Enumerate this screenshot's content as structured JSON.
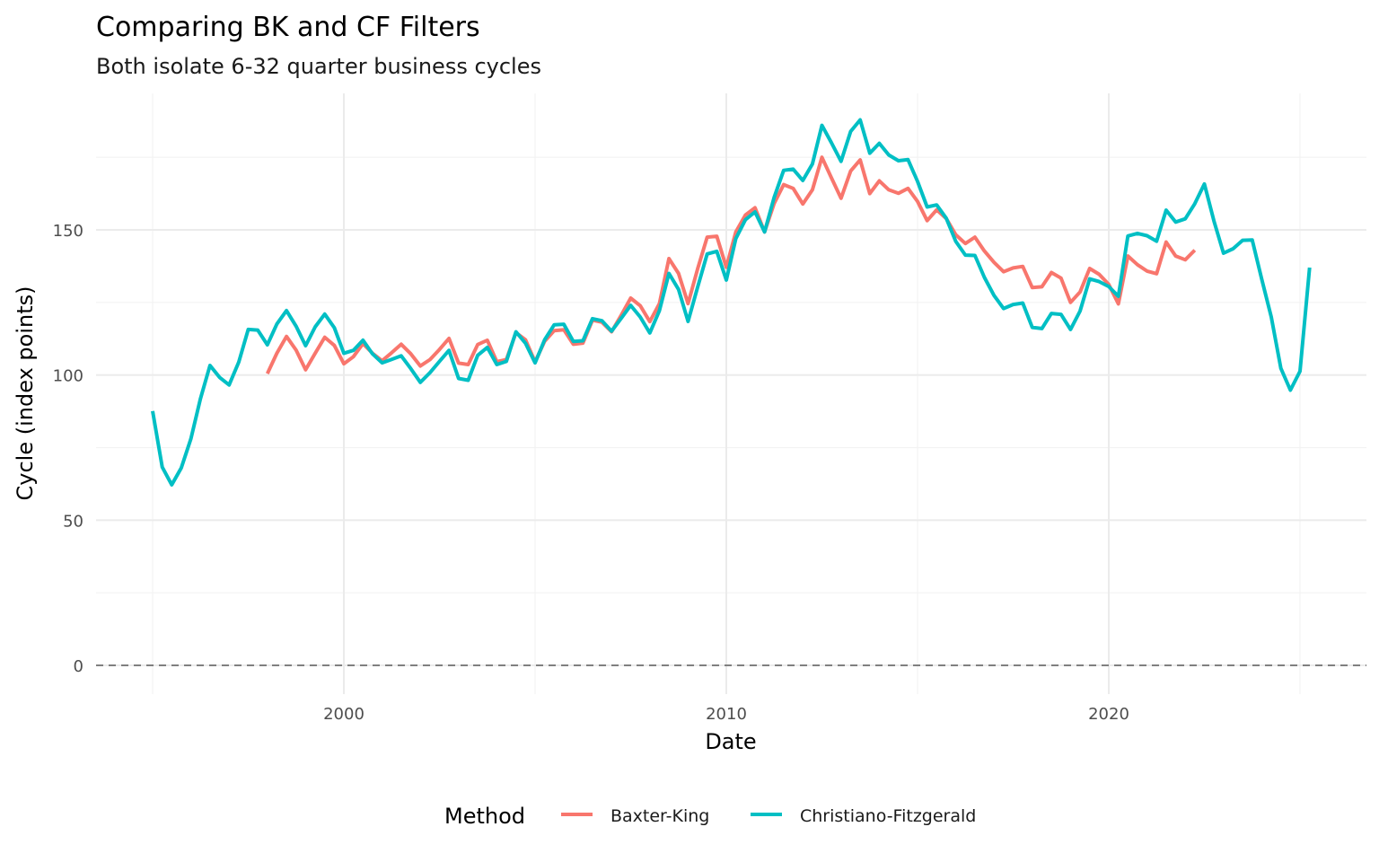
{
  "chart_data": {
    "type": "line",
    "title": "Comparing BK and CF Filters",
    "subtitle": "Both isolate 6-32 quarter business cycles",
    "xlabel": "Date",
    "ylabel": "Cycle (index points)",
    "xlim": [
      1993.5,
      2026.5
    ],
    "ylim": [
      -10,
      196
    ],
    "x_ticks": [
      2000,
      2010,
      2020
    ],
    "x_tick_labels": [
      "2000",
      "2010",
      "2020"
    ],
    "x_minor_ticks": [
      1995,
      2005,
      2015,
      2025
    ],
    "y_ticks": [
      0,
      50,
      100,
      150
    ],
    "y_tick_labels": [
      "0",
      "50",
      "100",
      "150"
    ],
    "y_minor_ticks": [
      25,
      75,
      125,
      175
    ],
    "grid": true,
    "reference_line": {
      "y": 0,
      "style": "dashed",
      "color": "#808080"
    },
    "legend": {
      "title": "Method",
      "position": "bottom"
    },
    "series": [
      {
        "name": "Baxter-King",
        "color": "#F8766D",
        "x_start": 1998.0,
        "x_step": 0.25,
        "values": [
          100.5,
          107.5,
          113.3,
          108.6,
          101.8,
          107.5,
          113.0,
          110.2,
          103.9,
          106.3,
          110.8,
          107.5,
          104.9,
          107.7,
          110.6,
          107.3,
          103.1,
          105.3,
          108.8,
          112.6,
          104.1,
          103.6,
          110.5,
          112.0,
          104.6,
          105.3,
          114.6,
          112.1,
          104.5,
          111.6,
          115.3,
          115.6,
          110.6,
          111.0,
          118.9,
          118.2,
          114.9,
          120.6,
          126.5,
          123.9,
          118.4,
          124.6,
          140.1,
          135.0,
          124.6,
          136.5,
          147.5,
          147.8,
          137.1,
          149.3,
          155.1,
          157.6,
          149.3,
          159.1,
          165.6,
          164.3,
          158.9,
          163.8,
          175.0,
          167.9,
          160.9,
          170.3,
          174.1,
          162.5,
          166.9,
          163.8,
          162.6,
          164.3,
          159.8,
          153.2,
          156.9,
          153.9,
          148.3,
          145.3,
          147.5,
          142.7,
          138.8,
          135.6,
          136.9,
          137.4,
          130.1,
          130.4,
          135.3,
          133.4,
          125.0,
          128.6,
          136.7,
          134.7,
          131.2,
          124.5,
          141.0,
          138.0,
          135.8,
          134.9,
          145.8,
          141.0,
          139.7,
          143.0
        ]
      },
      {
        "name": "Christiano-Fitzgerald",
        "color": "#00BFC4",
        "x_start": 1995.0,
        "x_step": 0.25,
        "values": [
          87.6,
          68.3,
          62.2,
          68.0,
          78.0,
          91.9,
          103.3,
          99.2,
          96.6,
          104.4,
          115.7,
          115.5,
          110.4,
          117.6,
          122.2,
          116.8,
          110.1,
          116.6,
          121.0,
          116.3,
          107.5,
          108.5,
          112.0,
          107.3,
          104.2,
          105.4,
          106.6,
          102.2,
          97.5,
          100.8,
          104.7,
          108.5,
          98.8,
          98.2,
          106.8,
          109.5,
          103.6,
          104.7,
          114.9,
          110.9,
          104.2,
          112.1,
          117.3,
          117.5,
          111.6,
          111.8,
          119.4,
          118.7,
          115.1,
          119.5,
          124.0,
          120.0,
          114.5,
          122.2,
          135.0,
          129.5,
          118.5,
          130.2,
          141.7,
          142.6,
          132.7,
          147.0,
          153.5,
          156.2,
          149.3,
          161.2,
          170.5,
          170.9,
          167.0,
          172.7,
          186.0,
          180.0,
          173.6,
          183.9,
          187.9,
          176.4,
          179.8,
          175.8,
          173.8,
          174.2,
          166.7,
          157.9,
          158.6,
          154.0,
          146.0,
          141.3,
          141.2,
          133.6,
          127.4,
          122.9,
          124.3,
          124.8,
          116.4,
          116.0,
          121.2,
          120.9,
          115.7,
          122.0,
          133.1,
          132.2,
          130.5,
          127.1,
          147.9,
          148.8,
          148.0,
          146.1,
          156.8,
          152.7,
          153.8,
          159.0,
          165.8,
          153.0,
          142.0,
          143.5,
          146.4,
          146.5,
          133.0,
          120.0,
          102.3,
          94.8,
          101.3,
          137.0
        ]
      }
    ]
  }
}
